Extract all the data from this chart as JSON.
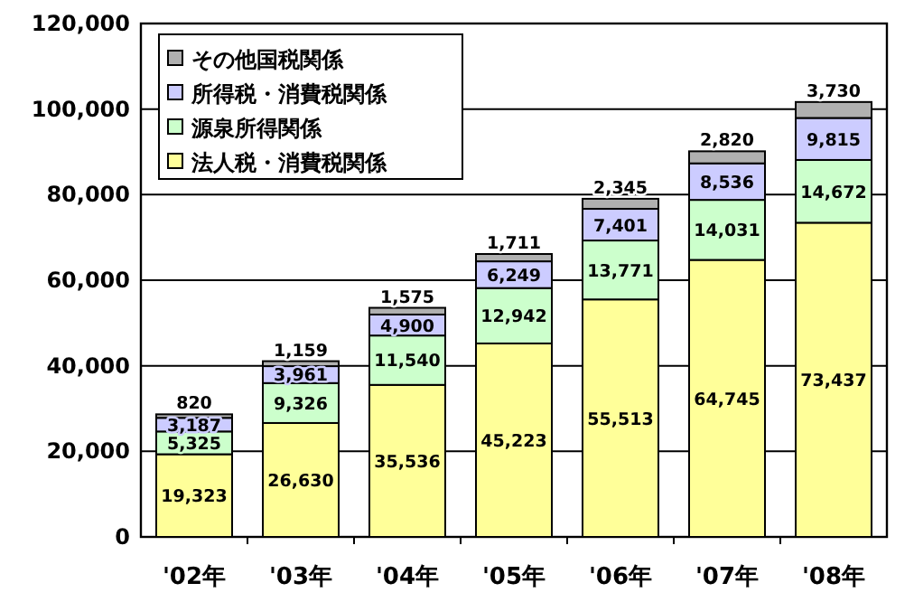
{
  "chart_data": {
    "type": "bar",
    "stacked": true,
    "categories": [
      "'02年",
      "'03年",
      "'04年",
      "'05年",
      "'06年",
      "'07年",
      "'08年"
    ],
    "series": [
      {
        "name": "法人税・消費税関係",
        "color": "#ffff99",
        "values": [
          19323,
          26630,
          35536,
          45223,
          55513,
          64745,
          73437
        ],
        "value_labels": [
          "19,323",
          "26,630",
          "35,536",
          "45,223",
          "55,513",
          "64,745",
          "73,437"
        ]
      },
      {
        "name": "源泉所得関係",
        "color": "#ccffcc",
        "values": [
          5325,
          9326,
          11540,
          12942,
          13771,
          14031,
          14672
        ],
        "value_labels": [
          "5,325",
          "9,326",
          "11,540",
          "12,942",
          "13,771",
          "14,031",
          "14,672"
        ]
      },
      {
        "name": "所得税・消費税関係",
        "color": "#ccccff",
        "values": [
          3187,
          3961,
          4900,
          6249,
          7401,
          8536,
          9815
        ],
        "value_labels": [
          "3,187",
          "3,961",
          "4,900",
          "6,249",
          "7,401",
          "8,536",
          "9,815"
        ]
      },
      {
        "name": "その他国税関係",
        "color": "#b0b0b0",
        "values": [
          820,
          1159,
          1575,
          1711,
          2345,
          2820,
          3730
        ],
        "value_labels": [
          "820",
          "1,159",
          "1,575",
          "1,711",
          "2,345",
          "2,820",
          "3,730"
        ]
      }
    ],
    "ylim": [
      0,
      120000
    ],
    "yticks": [
      {
        "value": 0,
        "label": "0"
      },
      {
        "value": 20000,
        "label": "20,000"
      },
      {
        "value": 40000,
        "label": "40,000"
      },
      {
        "value": 60000,
        "label": "60,000"
      },
      {
        "value": 80000,
        "label": "80,000"
      },
      {
        "value": 100000,
        "label": "100,000"
      },
      {
        "value": 120000,
        "label": "120,000"
      }
    ],
    "grid": "y",
    "legend": "top left"
  }
}
